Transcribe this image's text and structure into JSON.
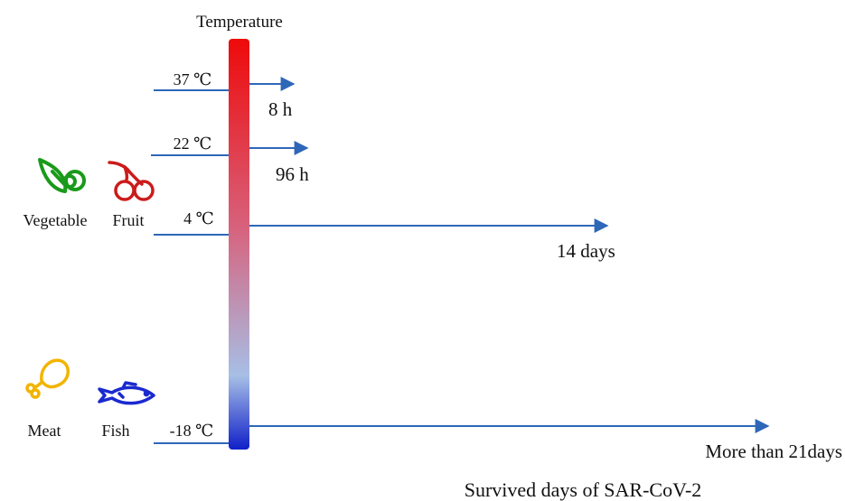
{
  "title": "Temperature",
  "footer_label": "Survived days of SAR-CoV-2",
  "colors": {
    "bar_top": "#ee0a0a",
    "bar_mid": "#d8607a",
    "bar_lower": "#a7bfe6",
    "bar_bottom": "#1020c8",
    "arrow": "#2e67b8",
    "tick": "#2e67b8",
    "vegetable": "#1a9a1a",
    "fruit": "#cc1b1b",
    "meat": "#f2b400",
    "fish": "#1a2ad0"
  },
  "levels": [
    {
      "temp": "37 ℃",
      "duration": "8 h"
    },
    {
      "temp": "22 ℃",
      "duration": "96 h"
    },
    {
      "temp": "4 ℃",
      "duration": "14 days"
    },
    {
      "temp": "-18 ℃",
      "duration": "More than 21days"
    }
  ],
  "foods": [
    {
      "label": "Vegetable",
      "icon": "vegetable-icon"
    },
    {
      "label": "Fruit",
      "icon": "cherry-icon"
    },
    {
      "label": "Meat",
      "icon": "drumstick-icon"
    },
    {
      "label": "Fish",
      "icon": "fish-icon"
    }
  ]
}
